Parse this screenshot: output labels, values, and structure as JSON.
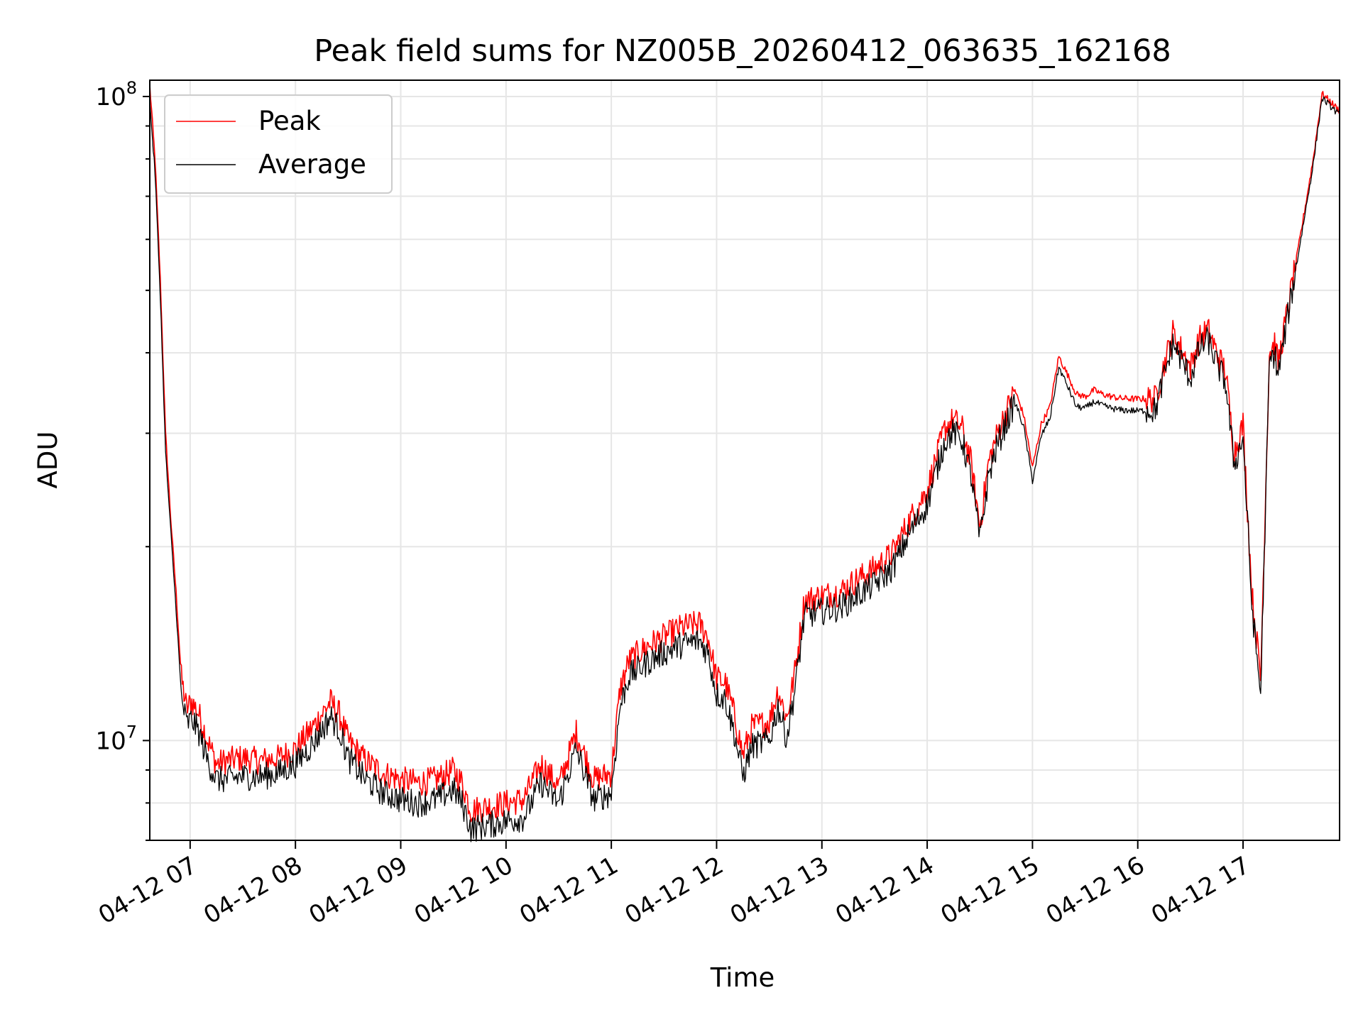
{
  "chart_data": {
    "type": "line",
    "title": "Peak field sums for NZ005B_20260412_063635_162168",
    "xlabel": "Time",
    "ylabel": "ADU",
    "yscale": "log",
    "xlim": [
      "2026-04-12 06:37",
      "2026-04-12 17:55"
    ],
    "ylim": [
      7000000,
      106000000
    ],
    "grid": true,
    "legend_position": "top-left",
    "x_ticks": [
      "04-12 07",
      "04-12 08",
      "04-12 09",
      "04-12 10",
      "04-12 11",
      "04-12 12",
      "04-12 13",
      "04-12 14",
      "04-12 15",
      "04-12 16",
      "04-12 17"
    ],
    "y_ticks": [
      {
        "value": 10000000,
        "base": "10",
        "exp": "7"
      },
      {
        "value": 100000000,
        "base": "10",
        "exp": "8"
      }
    ],
    "x": [
      "06:37",
      "06:40",
      "06:43",
      "06:46",
      "06:49",
      "06:52",
      "06:55",
      "06:58",
      "07:01",
      "07:05",
      "07:10",
      "07:15",
      "07:20",
      "07:30",
      "07:40",
      "07:50",
      "08:00",
      "08:10",
      "08:20",
      "08:25",
      "08:30",
      "08:40",
      "08:50",
      "09:00",
      "09:10",
      "09:20",
      "09:30",
      "09:35",
      "09:40",
      "09:50",
      "10:00",
      "10:10",
      "10:20",
      "10:30",
      "10:40",
      "10:50",
      "11:00",
      "11:05",
      "11:10",
      "11:20",
      "11:30",
      "11:40",
      "11:50",
      "11:55",
      "12:00",
      "12:05",
      "12:10",
      "12:15",
      "12:20",
      "12:30",
      "12:35",
      "12:40",
      "12:45",
      "12:50",
      "13:00",
      "13:10",
      "13:20",
      "13:30",
      "13:40",
      "13:50",
      "14:00",
      "14:10",
      "14:15",
      "14:20",
      "14:25",
      "14:30",
      "14:35",
      "14:40",
      "14:50",
      "14:55",
      "15:00",
      "15:05",
      "15:10",
      "15:15",
      "15:20",
      "15:25",
      "15:30",
      "15:35",
      "15:40",
      "15:45",
      "15:50",
      "16:00",
      "16:10",
      "16:20",
      "16:30",
      "16:35",
      "16:40",
      "16:45",
      "16:50",
      "16:55",
      "17:00",
      "17:05",
      "17:10",
      "17:15",
      "17:18",
      "17:20",
      "17:25",
      "17:30",
      "17:40",
      "17:45",
      "17:50",
      "17:55"
    ],
    "series": [
      {
        "name": "Peak",
        "color": "#ff0000",
        "values": [
          104000000,
          80000000,
          52000000,
          30000000,
          22000000,
          17000000,
          12500000,
          11200000,
          11500000,
          11000000,
          10000000,
          9200000,
          9300000,
          9400000,
          9300000,
          9400000,
          9700000,
          10500000,
          11500000,
          11000000,
          10000000,
          9300000,
          8900000,
          8700000,
          8600000,
          8700000,
          9000000,
          8600000,
          7800000,
          7900000,
          8000000,
          8100000,
          9200000,
          8500000,
          10300000,
          8700000,
          8900000,
          12000000,
          13300000,
          14000000,
          14500000,
          15000000,
          15200000,
          14500000,
          12500000,
          12300000,
          11000000,
          9500000,
          10500000,
          10700000,
          12000000,
          10800000,
          13000000,
          16500000,
          16800000,
          17000000,
          17800000,
          18500000,
          19500000,
          22000000,
          24500000,
          30500000,
          31500000,
          30500000,
          27000000,
          21500000,
          27000000,
          30000000,
          35000000,
          32000000,
          26500000,
          31000000,
          33000000,
          39500000,
          37000000,
          34500000,
          34200000,
          35000000,
          34500000,
          34200000,
          34000000,
          33900000,
          34000000,
          43000000,
          38000000,
          42000000,
          43500000,
          40000000,
          37500000,
          28000000,
          31000000,
          17000000,
          12500000,
          40000000,
          41500000,
          38500000,
          46000000,
          55000000,
          80000000,
          101000000,
          98000000,
          95000000
        ]
      },
      {
        "name": "Average",
        "color": "#000000",
        "values": [
          98000000,
          76000000,
          49000000,
          28000000,
          21000000,
          16000000,
          11700000,
          10600000,
          10800000,
          10300000,
          9300000,
          8700000,
          8700000,
          8800000,
          8800000,
          8900000,
          9200000,
          9900000,
          10900000,
          10400000,
          9400000,
          8700000,
          8300000,
          8100000,
          8000000,
          8100000,
          8400000,
          8000000,
          7300000,
          7400000,
          7500000,
          7600000,
          8600000,
          8000000,
          9700000,
          8100000,
          8300000,
          11300000,
          12600000,
          13200000,
          13700000,
          14100000,
          14300000,
          13700000,
          11800000,
          11600000,
          10300000,
          8800000,
          9800000,
          10000000,
          11300000,
          10100000,
          12200000,
          15600000,
          15900000,
          16100000,
          16800000,
          17500000,
          18500000,
          21000000,
          23300000,
          29200000,
          30200000,
          29200000,
          25800000,
          20500000,
          25800000,
          28800000,
          33600000,
          30700000,
          25300000,
          29700000,
          31700000,
          38000000,
          35500000,
          33000000,
          32800000,
          33600000,
          33100000,
          32800000,
          32600000,
          32500000,
          32600000,
          41500000,
          36500000,
          40500000,
          42000000,
          38500000,
          36000000,
          26800000,
          29600000,
          16200000,
          11800000,
          38500000,
          40000000,
          37000000,
          44800000,
          53800000,
          78500000,
          99500000,
          96500000,
          93500000
        ]
      }
    ]
  }
}
